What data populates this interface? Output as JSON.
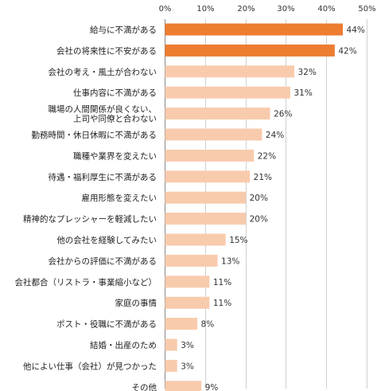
{
  "chart_data": {
    "type": "bar",
    "orientation": "horizontal",
    "title": "",
    "xlabel": "",
    "ylabel": "",
    "xlim": [
      0,
      50
    ],
    "value_suffix": "%",
    "grid": true,
    "ticks": [
      "0%",
      "10%",
      "20%",
      "30%",
      "40%",
      "50%"
    ],
    "tick_values": [
      0,
      10,
      20,
      30,
      40,
      50
    ],
    "categories": [
      "給与に不満がある",
      "会社の将来性に不安がある",
      "会社の考え・風土が合わない",
      "仕事内容に不満がある",
      "職場の人間関係が良くない、上司や同僚と合わない",
      "勤務時間・休日休暇に不満がある",
      "職種や業界を変えたい",
      "待遇・福利厚生に不満がある",
      "雇用形態を変えたい",
      "精神的なプレッシャーを軽減したい",
      "他の会社を経験してみたい",
      "会社からの評価に不満がある",
      "会社都合（リストラ・事業縮小など）",
      "家庭の事情",
      "ポスト・役職に不満がある",
      "結婚・出産のため",
      "他によい仕事（会社）が見つかった",
      "その他"
    ],
    "category_lines": [
      [
        "給与に不満がある"
      ],
      [
        "会社の将来性に不安がある"
      ],
      [
        "会社の考え・風土が合わない"
      ],
      [
        "仕事内容に不満がある"
      ],
      [
        "職場の人間関係が良くない、",
        "上司や同僚と合わない"
      ],
      [
        "勤務時間・休日休暇に不満がある"
      ],
      [
        "職種や業界を変えたい"
      ],
      [
        "待遇・福利厚生に不満がある"
      ],
      [
        "雇用形態を変えたい"
      ],
      [
        "精神的なプレッシャーを軽減したい"
      ],
      [
        "他の会社を経験してみたい"
      ],
      [
        "会社からの評価に不満がある"
      ],
      [
        "会社都合（リストラ・事業縮小など）"
      ],
      [
        "家庭の事情"
      ],
      [
        "ポスト・役職に不満がある"
      ],
      [
        "結婚・出産のため"
      ],
      [
        "他によい仕事（会社）が見つかった"
      ],
      [
        "その他"
      ]
    ],
    "values": [
      44,
      42,
      32,
      31,
      26,
      24,
      22,
      21,
      20,
      20,
      15,
      13,
      11,
      11,
      8,
      3,
      3,
      9
    ],
    "value_labels": [
      "44%",
      "42%",
      "32%",
      "31%",
      "26%",
      "24%",
      "22%",
      "21%",
      "20%",
      "20%",
      "15%",
      "13%",
      "11%",
      "11%",
      "8%",
      "3%",
      "3%",
      "9%"
    ],
    "highlight_count": 2,
    "colors": {
      "highlight": "#ed7d31",
      "normal": "#f8cbad"
    }
  }
}
